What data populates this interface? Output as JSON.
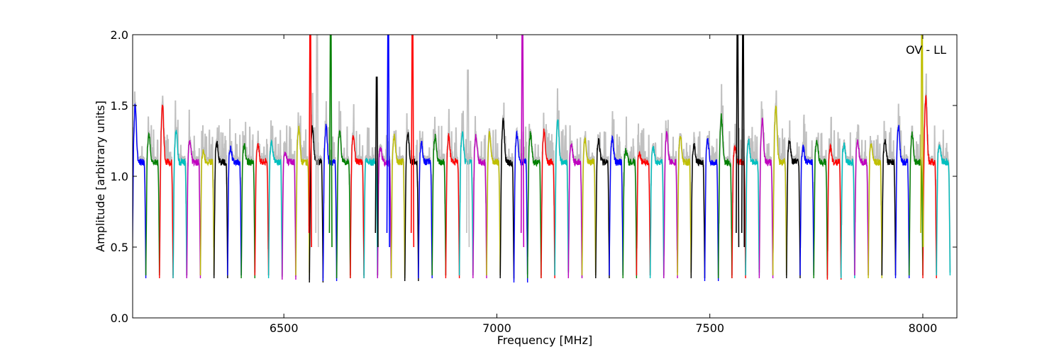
{
  "chart_data": {
    "type": "line",
    "title": "",
    "annotation": "OV - LL",
    "xlabel": "Frequency [MHz]",
    "ylabel": "Amplitude [arbitrary units]",
    "xlim": [
      6145,
      8080
    ],
    "ylim": [
      0.0,
      2.0
    ],
    "xticks": [
      6500,
      7000,
      7500,
      8000
    ],
    "xtick_labels": [
      "6500",
      "7000",
      "7500",
      "8000"
    ],
    "yticks": [
      0.0,
      0.5,
      1.0,
      1.5,
      2.0
    ],
    "ytick_labels": [
      "0.0",
      "0.5",
      "1.0",
      "1.5",
      "2.0"
    ],
    "grid": false,
    "background_color": "#c0c0c0",
    "palette": [
      "#0000ff",
      "#008000",
      "#ff0000",
      "#00bfbf",
      "#bf00bf",
      "#bfbf00",
      "#000000"
    ],
    "channel_width_mhz": 32,
    "channel_centers_mhz": [
      6160,
      6192,
      6224,
      6256,
      6288,
      6320,
      6352,
      6384,
      6416,
      6448,
      6480,
      6512,
      6544,
      6576,
      6608,
      6640,
      6672,
      6704,
      6736,
      6768,
      6800,
      6832,
      6864,
      6896,
      6928,
      6960,
      6992,
      7024,
      7056,
      7088,
      7120,
      7152,
      7184,
      7216,
      7248,
      7280,
      7312,
      7344,
      7376,
      7408,
      7440,
      7472,
      7504,
      7536,
      7568,
      7600,
      7632,
      7664,
      7696,
      7728,
      7760,
      7792,
      7824,
      7856,
      7888,
      7920,
      7952,
      7984,
      8016,
      8048
    ],
    "channel_peak_amplitudes": [
      1.5,
      1.3,
      1.5,
      1.32,
      1.25,
      1.17,
      1.23,
      1.2,
      1.22,
      1.22,
      1.25,
      1.15,
      1.35,
      1.35,
      1.35,
      1.32,
      1.28,
      1.12,
      1.2,
      1.28,
      1.3,
      1.23,
      1.28,
      1.28,
      1.3,
      1.28,
      1.3,
      1.4,
      1.3,
      1.3,
      1.32,
      1.4,
      1.22,
      1.25,
      1.25,
      1.27,
      1.18,
      1.15,
      1.2,
      1.3,
      1.28,
      1.22,
      1.25,
      1.42,
      1.2,
      1.25,
      1.4,
      1.5,
      1.25,
      1.2,
      1.25,
      1.2,
      1.22,
      1.25,
      1.22,
      1.25,
      1.35,
      1.3,
      1.55,
      1.22
    ],
    "channel_edge_amplitudes": [
      0.28,
      0.3,
      0.28,
      0.28,
      0.28,
      0.3,
      0.28,
      0.3,
      0.28,
      0.3,
      0.28,
      0.27,
      0.3,
      0.25,
      0.26,
      0.28,
      0.28,
      0.28,
      0.28,
      0.28,
      0.26,
      0.28,
      0.3,
      0.28,
      0.3,
      0.28,
      0.3,
      0.28,
      0.25,
      0.28,
      0.28,
      0.3,
      0.28,
      0.3,
      0.28,
      0.3,
      0.28,
      0.3,
      0.28,
      0.28,
      0.3,
      0.28,
      0.26,
      0.28,
      0.28,
      0.3,
      0.28,
      0.3,
      0.28,
      0.3,
      0.28,
      0.27,
      0.28,
      0.3,
      0.28,
      0.3,
      0.28,
      0.3,
      0.28,
      0.3
    ],
    "spikes": [
      {
        "x": 6562,
        "y": 2.0,
        "color": "#ff0000"
      },
      {
        "x": 6578,
        "y": 2.0,
        "color": "#c0c0c0"
      },
      {
        "x": 6610,
        "y": 2.0,
        "color": "#008000"
      },
      {
        "x": 6718,
        "y": 1.7,
        "color": "#000000"
      },
      {
        "x": 6745,
        "y": 2.0,
        "color": "#0000ff"
      },
      {
        "x": 6802,
        "y": 2.0,
        "color": "#ff0000"
      },
      {
        "x": 6932,
        "y": 1.75,
        "color": "#c0c0c0"
      },
      {
        "x": 7060,
        "y": 2.0,
        "color": "#bf00bf"
      },
      {
        "x": 7565,
        "y": 2.0,
        "color": "#000000"
      },
      {
        "x": 7578,
        "y": 2.0,
        "color": "#000000"
      },
      {
        "x": 7998,
        "y": 2.0,
        "color": "#bfbf00"
      }
    ]
  }
}
